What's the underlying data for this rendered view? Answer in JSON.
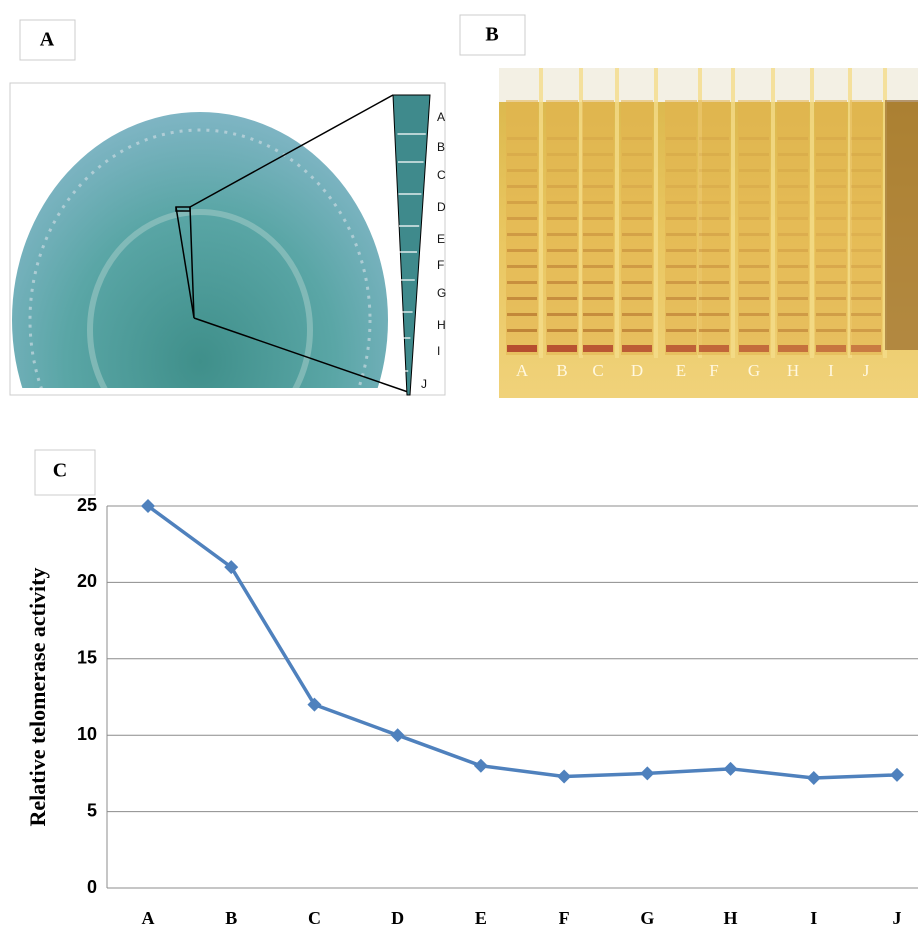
{
  "panel_a": {
    "label": "A",
    "strip_labels": [
      "A",
      "B",
      "C",
      "D",
      "E",
      "F",
      "G",
      "H",
      "I",
      "J"
    ]
  },
  "panel_b": {
    "label": "B",
    "lane_labels": [
      "A",
      "B",
      "C",
      "D",
      "E",
      "F",
      "G",
      "H",
      "I",
      "J"
    ]
  },
  "panel_c": {
    "label": "C"
  },
  "chart_data": {
    "type": "line",
    "ylabel": "Relative telomerase activity",
    "categories": [
      "A",
      "B",
      "C",
      "D",
      "E",
      "F",
      "G",
      "H",
      "I",
      "J"
    ],
    "values": [
      25,
      21,
      12,
      10,
      8,
      7.3,
      7.5,
      7.8,
      7.2,
      7.4
    ],
    "color": "#4f81bd",
    "marker": "diamond",
    "ylim": [
      0,
      25
    ],
    "yticks": [
      0,
      5,
      10,
      15,
      20,
      25
    ],
    "grid": true
  }
}
